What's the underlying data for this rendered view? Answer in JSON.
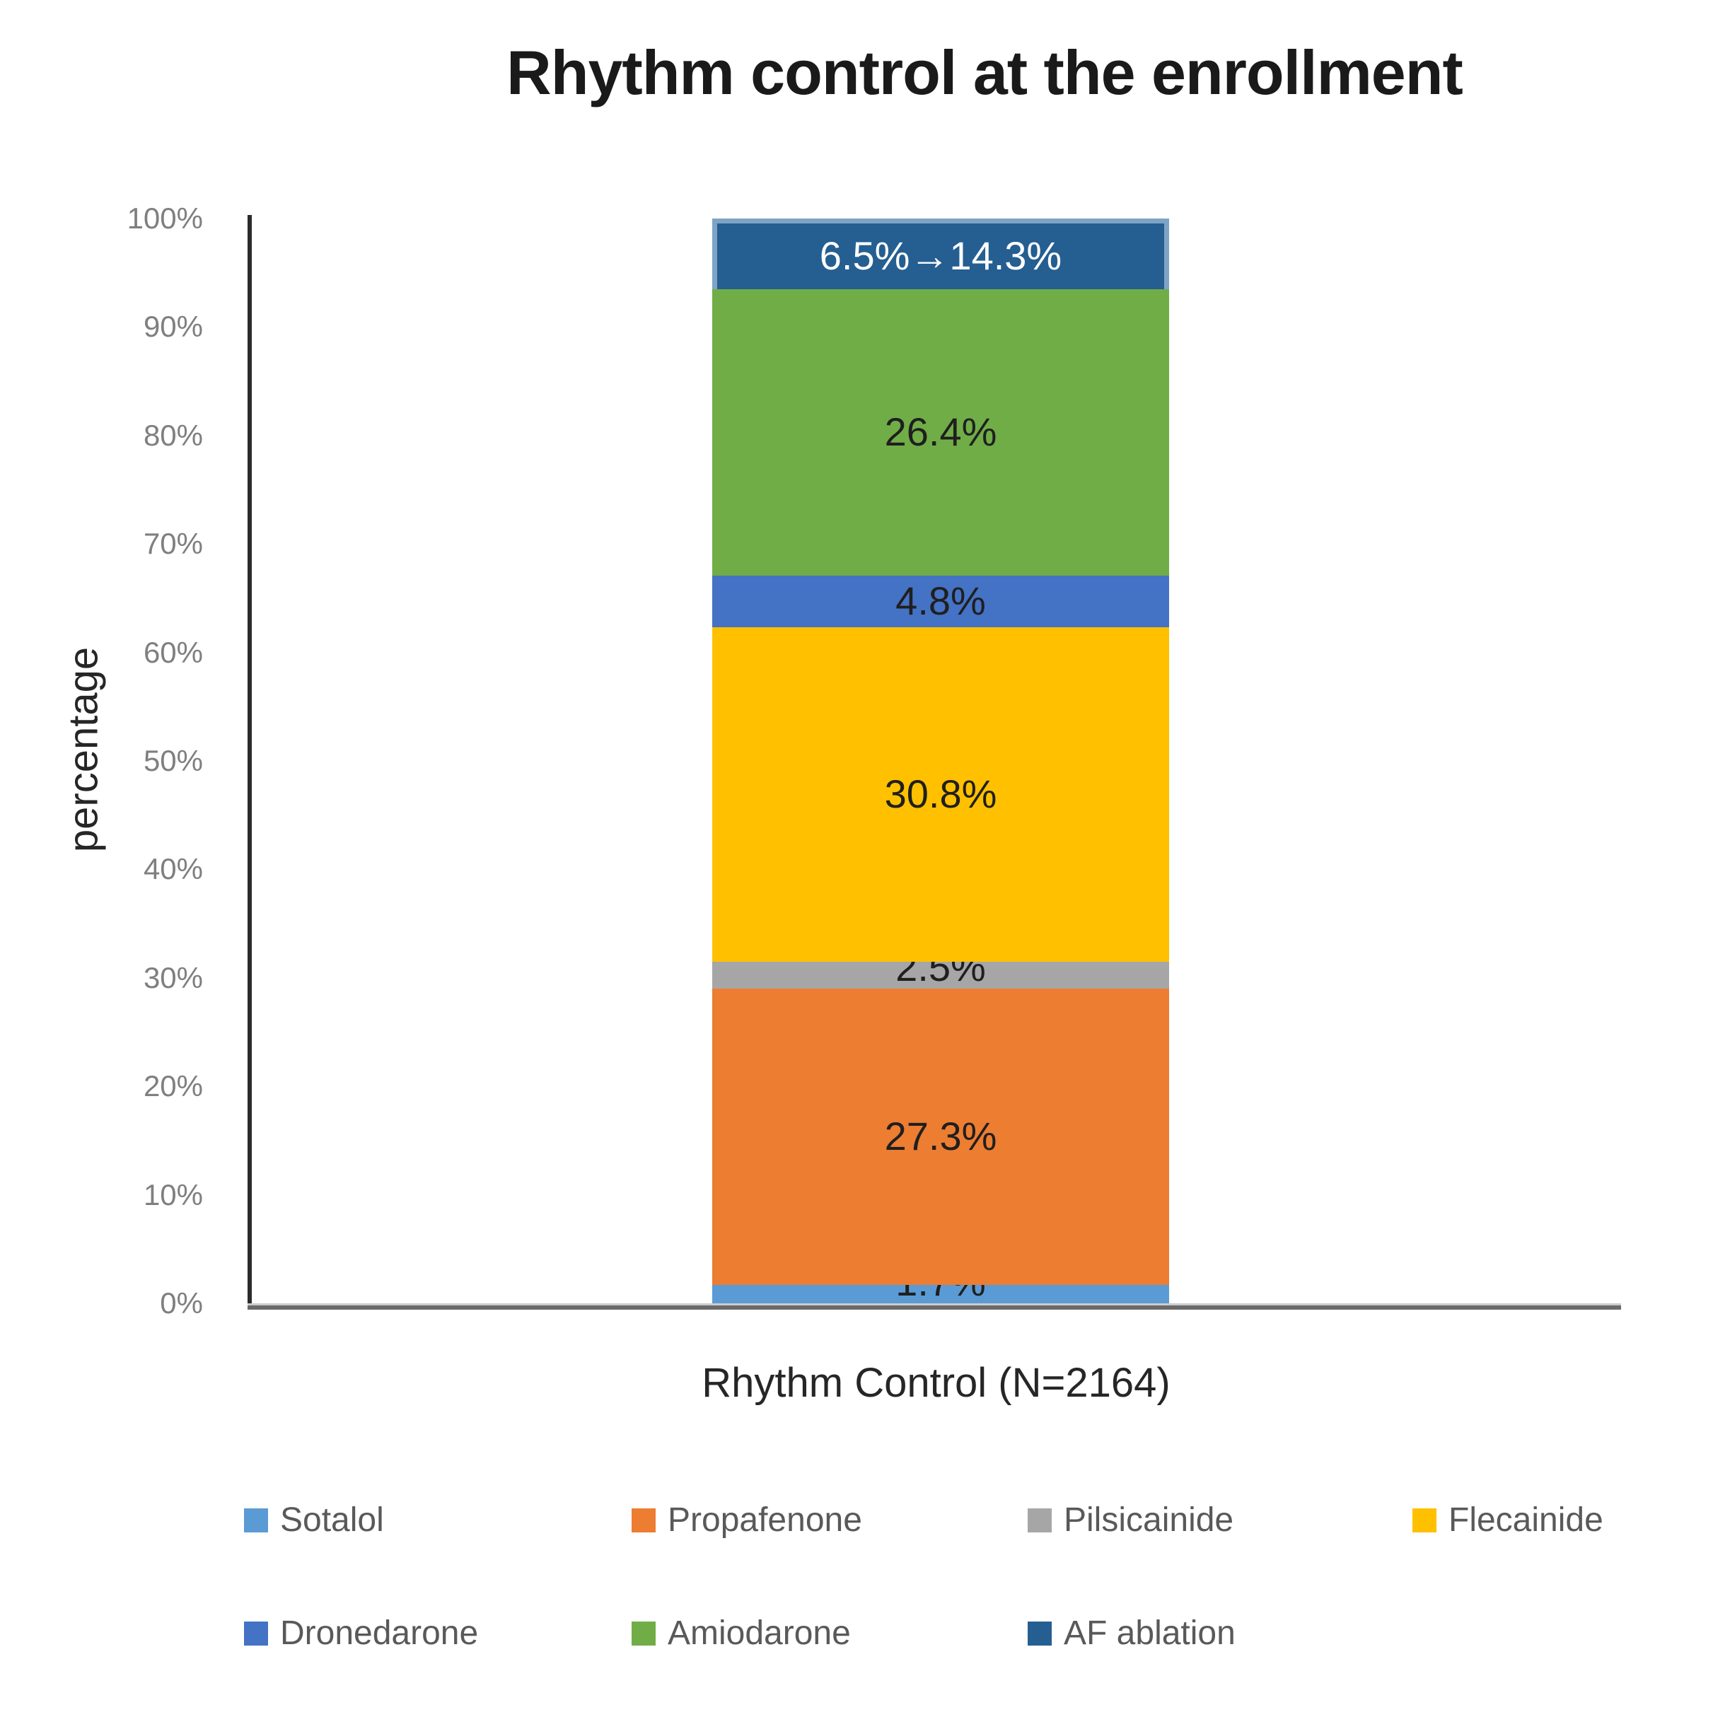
{
  "chart_data": {
    "type": "bar",
    "subtype": "stacked-100-percent-column",
    "title": "Rhythm control at the enrollment",
    "xlabel": "Rhythm Control (N=2164)",
    "ylabel": "percentage",
    "categories": [
      "Rhythm Control (N=2164)"
    ],
    "ylim": [
      0,
      100
    ],
    "y_ticks": [
      "0%",
      "10%",
      "20%",
      "30%",
      "40%",
      "50%",
      "60%",
      "70%",
      "80%",
      "90%",
      "100%"
    ],
    "grid": false,
    "legend_position": "bottom",
    "series": [
      {
        "name": "Sotalol",
        "value": 1.7,
        "label": "1.7%",
        "color": "#5B9BD5",
        "label_color": "#1f1f1f"
      },
      {
        "name": "Propafenone",
        "value": 27.3,
        "label": "27.3%",
        "color": "#ED7D31",
        "label_color": "#1f1f1f"
      },
      {
        "name": "Pilsicainide",
        "value": 2.5,
        "label": "2.5%",
        "color": "#A6A6A6",
        "label_color": "#1f1f1f"
      },
      {
        "name": "Flecainide",
        "value": 30.8,
        "label": "30.8%",
        "color": "#FFC000",
        "label_color": "#1f1f1f"
      },
      {
        "name": "Dronedarone",
        "value": 4.8,
        "label": "4.8%",
        "color": "#4472C4",
        "label_color": "#1f1f1f"
      },
      {
        "name": "Amiodarone",
        "value": 26.4,
        "label": "26.4%",
        "color": "#70AD47",
        "label_color": "#1f1f1f"
      },
      {
        "name": "AF ablation",
        "value": 6.5,
        "label": "6.5%→14.3%",
        "color": "#255E91",
        "label_color": "#FFFFFF",
        "highlight_border": "#7FA3C6"
      }
    ],
    "legend_rows": [
      [
        "Sotalol",
        "Propafenone",
        "Pilsicainide",
        "Flecainide"
      ],
      [
        "Dronedarone",
        "Amiodarone",
        "AF ablation"
      ]
    ]
  },
  "colors": {
    "title_text": "#1a1a1a",
    "axis_text": "#262626",
    "tick_text": "#7f7f7f",
    "legend_text": "#595959",
    "y_axis_line": "#2b2b2b",
    "x_axis_line": "#6a6a6a"
  }
}
